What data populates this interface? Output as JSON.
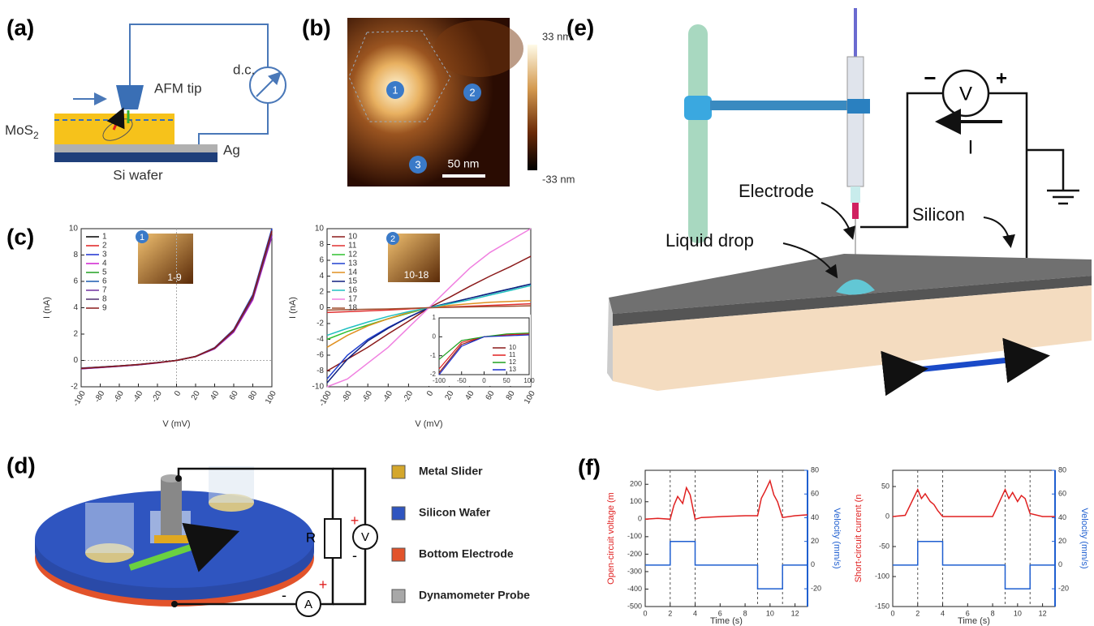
{
  "panel_labels": [
    "(a)",
    "(b)",
    "(c)",
    "(d)",
    "(e)",
    "(f)"
  ],
  "a": {
    "tip": "AFM tip",
    "dc": "d.c.",
    "mos2": "MoS",
    "mos2_sub": "2",
    "ag": "Ag",
    "wafer": "Si wafer"
  },
  "b": {
    "scale_top": "33 nm",
    "scale_bottom": "-33 nm",
    "scalebar": "50 nm",
    "markers": [
      "1",
      "2",
      "3"
    ]
  },
  "c_insets": {
    "badges": [
      "1",
      "2"
    ],
    "ranges": [
      "1-9",
      "10-18"
    ]
  },
  "d": {
    "resistor": "R",
    "voltmeter": "V",
    "ammeter": "A",
    "signs": [
      "+",
      "-",
      "-",
      "+"
    ],
    "legend": [
      "Metal Slider",
      "Silicon Wafer",
      "Bottom Electrode",
      "Dynamometer Probe"
    ],
    "legend_colors": [
      "#d4a72c",
      "#2f55c0",
      "#e2532b",
      "#a8a8a8"
    ]
  },
  "e": {
    "electrode": "Electrode",
    "drop": "Liquid drop",
    "silicon": "Silicon",
    "voltmeter": "V",
    "minus": "−",
    "plus": "+",
    "current": "I"
  },
  "chart_data": [
    {
      "type": "line",
      "xlabel": "V (mV)",
      "ylabel": "I (nA)",
      "xlim": [
        -100,
        100
      ],
      "ylim": [
        -2,
        10
      ],
      "xticks": [
        -100,
        -80,
        -60,
        -40,
        -20,
        0,
        20,
        40,
        60,
        80,
        100
      ],
      "yticks": [
        -2,
        0,
        2,
        4,
        6,
        8,
        10
      ],
      "rotate_xticks": true,
      "zero_lines": true,
      "legend": "upper-left",
      "x": [
        -100,
        -80,
        -60,
        -40,
        -20,
        0,
        20,
        40,
        60,
        80,
        100
      ],
      "series": [
        {
          "name": "1",
          "color": "#000000",
          "values": [
            -0.6,
            -0.52,
            -0.43,
            -0.32,
            -0.17,
            0,
            0.3,
            0.95,
            2.3,
            4.9,
            9.9
          ]
        },
        {
          "name": "2",
          "color": "#e02020",
          "values": [
            -0.62,
            -0.53,
            -0.44,
            -0.33,
            -0.18,
            0,
            0.3,
            0.92,
            2.25,
            4.8,
            9.7
          ]
        },
        {
          "name": "3",
          "color": "#1a2fd0",
          "values": [
            -0.58,
            -0.5,
            -0.42,
            -0.31,
            -0.16,
            0,
            0.31,
            0.97,
            2.35,
            5.0,
            10
          ]
        },
        {
          "name": "4",
          "color": "#d020d0",
          "values": [
            -0.64,
            -0.55,
            -0.45,
            -0.34,
            -0.19,
            0,
            0.28,
            0.88,
            2.15,
            4.6,
            9.4
          ]
        },
        {
          "name": "5",
          "color": "#20a020",
          "values": [
            -0.6,
            -0.51,
            -0.42,
            -0.32,
            -0.17,
            0,
            0.3,
            0.94,
            2.28,
            4.85,
            9.8
          ]
        },
        {
          "name": "6",
          "color": "#1a5ab0",
          "values": [
            -0.59,
            -0.5,
            -0.41,
            -0.31,
            -0.16,
            0,
            0.31,
            0.96,
            2.32,
            4.95,
            9.9
          ]
        },
        {
          "name": "7",
          "color": "#7030a0",
          "values": [
            -0.63,
            -0.54,
            -0.44,
            -0.33,
            -0.18,
            0,
            0.29,
            0.9,
            2.2,
            4.7,
            9.5
          ]
        },
        {
          "name": "8",
          "color": "#503070",
          "values": [
            -0.61,
            -0.52,
            -0.43,
            -0.32,
            -0.17,
            0,
            0.3,
            0.93,
            2.27,
            4.82,
            9.75
          ]
        },
        {
          "name": "9",
          "color": "#8b1a1a",
          "values": [
            -0.6,
            -0.51,
            -0.42,
            -0.31,
            -0.17,
            0,
            0.3,
            0.95,
            2.3,
            4.88,
            9.85
          ]
        }
      ]
    },
    {
      "type": "line",
      "xlabel": "V (mV)",
      "ylabel": "I (nA)",
      "xlim": [
        -100,
        100
      ],
      "ylim": [
        -10,
        10
      ],
      "xticks": [
        -100,
        -80,
        -60,
        -40,
        -20,
        0,
        20,
        40,
        60,
        80,
        100
      ],
      "yticks": [
        -10,
        -8,
        -6,
        -4,
        -2,
        0,
        2,
        4,
        6,
        8,
        10
      ],
      "rotate_xticks": true,
      "zero_lines": false,
      "legend": "upper-left",
      "x": [
        -100,
        -80,
        -60,
        -40,
        -20,
        0,
        20,
        40,
        60,
        80,
        100
      ],
      "series": [
        {
          "name": "10",
          "color": "#8b1a1a",
          "values": [
            -8,
            -6.5,
            -5,
            -3.3,
            -1.7,
            0,
            1.3,
            2.7,
            4,
            5.2,
            6.5
          ]
        },
        {
          "name": "11",
          "color": "#e03030",
          "values": [
            -0.6,
            -0.5,
            -0.4,
            -0.3,
            -0.15,
            0,
            0.1,
            0.2,
            0.3,
            0.4,
            0.5
          ]
        },
        {
          "name": "12",
          "color": "#30c030",
          "values": [
            -4,
            -3,
            -2.2,
            -1.4,
            -0.7,
            0,
            0.6,
            1.2,
            1.8,
            2.4,
            3
          ]
        },
        {
          "name": "13",
          "color": "#2040d0",
          "values": [
            -9,
            -6,
            -4,
            -2.5,
            -1.2,
            0,
            0.6,
            1.2,
            1.8,
            2.4,
            3
          ]
        },
        {
          "name": "14",
          "color": "#e09020",
          "values": [
            -5,
            -3.5,
            -2.3,
            -1.4,
            -0.6,
            0,
            0.3,
            0.5,
            0.7,
            0.8,
            0.9
          ]
        },
        {
          "name": "15",
          "color": "#102080",
          "values": [
            -9.5,
            -6.5,
            -4.2,
            -2.6,
            -1.2,
            0,
            0.6,
            1.2,
            1.8,
            2.4,
            3
          ]
        },
        {
          "name": "16",
          "color": "#20c0c0",
          "values": [
            -3.5,
            -2.6,
            -1.8,
            -1.1,
            -0.5,
            0,
            0.5,
            1,
            1.6,
            2.2,
            2.8
          ]
        },
        {
          "name": "17",
          "color": "#f080e0",
          "values": [
            -10,
            -9,
            -7,
            -5,
            -2.5,
            0,
            2.5,
            5,
            7,
            8.5,
            10
          ]
        },
        {
          "name": "18",
          "color": "#a05030",
          "values": [
            -0.3,
            -0.25,
            -0.2,
            -0.15,
            -0.08,
            0,
            0.05,
            0.1,
            0.15,
            0.2,
            0.25
          ]
        }
      ]
    },
    {
      "type": "line",
      "xlim": [
        -100,
        100
      ],
      "ylim": [
        -2,
        1
      ],
      "xticks": [
        -100,
        -50,
        0,
        50,
        100
      ],
      "yticks": [
        -2,
        -1,
        0,
        1
      ],
      "rotate_xticks": false,
      "zero_lines": false,
      "legend": "lower-right",
      "x": [
        -100,
        -50,
        0,
        50,
        100
      ],
      "series": [
        {
          "name": "10",
          "color": "#8b1a1a",
          "values": [
            -1.9,
            -0.4,
            0,
            0.1,
            0.15
          ]
        },
        {
          "name": "11",
          "color": "#e02020",
          "values": [
            -1.7,
            -0.3,
            0,
            0.1,
            0.15
          ]
        },
        {
          "name": "12",
          "color": "#20a020",
          "values": [
            -1.2,
            -0.2,
            0,
            0.15,
            0.2
          ]
        },
        {
          "name": "13",
          "color": "#1a2fd0",
          "values": [
            -2,
            -0.5,
            0,
            0.05,
            0.1
          ]
        }
      ]
    },
    {
      "type": "line",
      "xlabel": "Time (s)",
      "ylabel": "Open-circuit voltage (m",
      "y2label": "Velocity (mm/s)",
      "xlim": [
        0,
        13
      ],
      "ylim": [
        -500,
        280
      ],
      "y2lim": [
        -35,
        80
      ],
      "xticks": [
        0,
        2,
        4,
        6,
        8,
        10,
        12
      ],
      "yticks": [
        -500,
        -400,
        -300,
        -200,
        -100,
        0,
        100,
        200
      ],
      "y2ticks": [
        -20,
        0,
        20,
        40,
        60,
        80
      ],
      "rotate_xticks": false,
      "zero_lines": false,
      "vlines": [
        2,
        4,
        9,
        11
      ],
      "series": [
        {
          "color": "#e02020",
          "x": [
            0,
            1,
            2,
            2.3,
            2.6,
            3,
            3.3,
            3.6,
            4,
            4.5,
            6,
            8,
            9,
            9.3,
            9.6,
            10,
            10.3,
            10.6,
            11,
            12,
            13
          ],
          "values": [
            0,
            5,
            0,
            80,
            130,
            90,
            180,
            140,
            0,
            10,
            15,
            20,
            20,
            120,
            160,
            220,
            140,
            100,
            10,
            20,
            25
          ]
        },
        {
          "color": "#1f5fd0",
          "axis": "y2",
          "x": [
            0,
            2,
            2,
            4,
            4,
            9,
            9,
            11,
            11,
            13
          ],
          "values": [
            0,
            0,
            20,
            20,
            0,
            0,
            -20,
            -20,
            0,
            0
          ]
        }
      ]
    },
    {
      "type": "line",
      "xlabel": "Time (s)",
      "ylabel": "Short-circuit current (n",
      "y2label": "Velocity (mm/s)",
      "xlim": [
        0,
        13
      ],
      "ylim": [
        -150,
        77
      ],
      "y2lim": [
        -35,
        80
      ],
      "xticks": [
        0,
        2,
        4,
        6,
        8,
        10,
        12
      ],
      "yticks": [
        -150,
        -100,
        -50,
        0,
        50
      ],
      "y2ticks": [
        -20,
        0,
        20,
        40,
        60,
        80
      ],
      "rotate_xticks": false,
      "zero_lines": false,
      "vlines": [
        2,
        4,
        9,
        11
      ],
      "series": [
        {
          "color": "#e02020",
          "x": [
            0,
            1,
            2,
            2.3,
            2.6,
            3,
            3.3,
            3.6,
            4,
            5,
            6,
            8,
            9,
            9.3,
            9.6,
            10,
            10.3,
            10.6,
            11,
            12,
            13
          ],
          "values": [
            0,
            2,
            45,
            30,
            38,
            25,
            20,
            10,
            0,
            0,
            0,
            0,
            45,
            30,
            40,
            25,
            35,
            30,
            5,
            0,
            0
          ]
        },
        {
          "color": "#1f5fd0",
          "axis": "y2",
          "x": [
            0,
            2,
            2,
            4,
            4,
            9,
            9,
            11,
            11,
            13
          ],
          "values": [
            0,
            0,
            20,
            20,
            0,
            0,
            -20,
            -20,
            0,
            0
          ]
        }
      ]
    }
  ]
}
